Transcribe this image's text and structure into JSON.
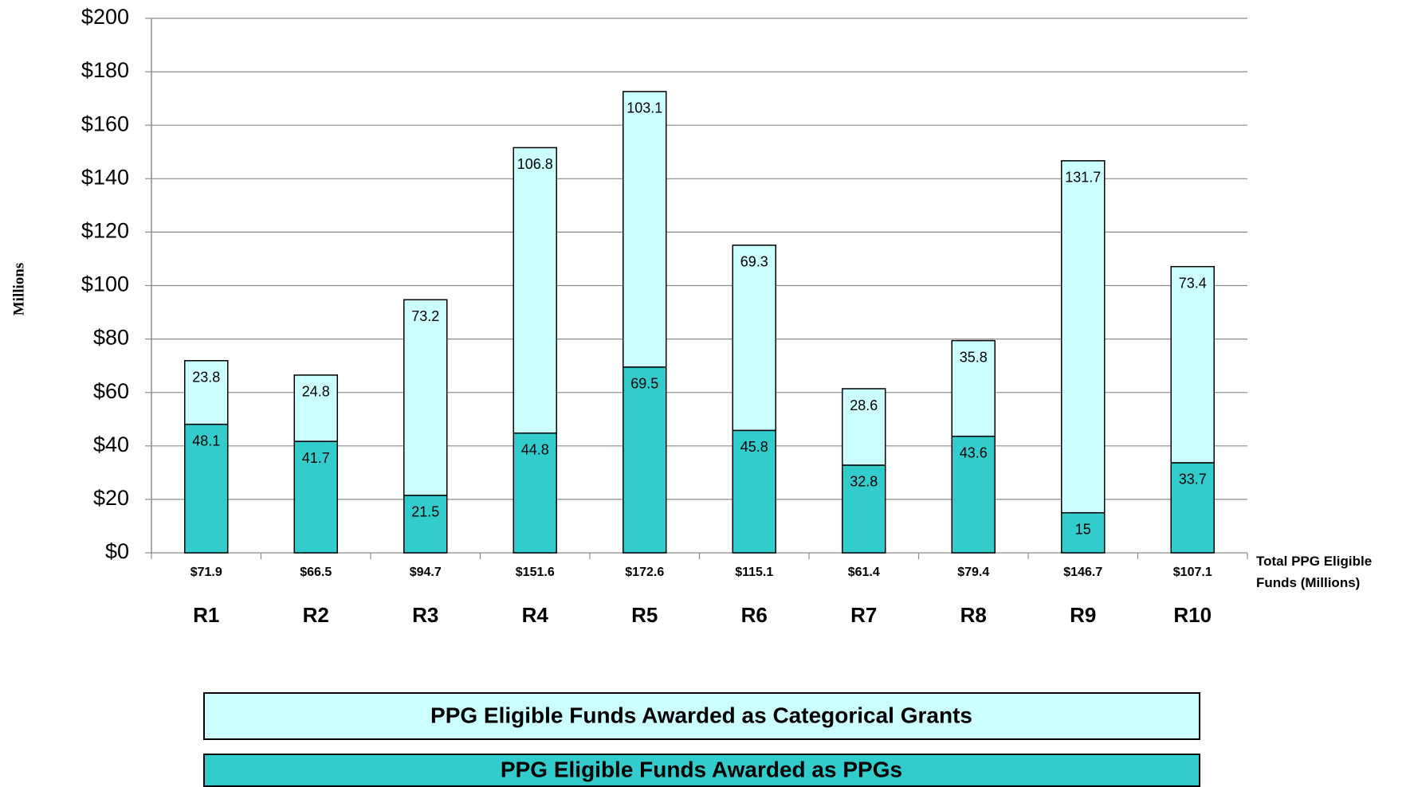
{
  "chart_data": {
    "type": "stacked_bar",
    "y_label": "Millions",
    "categories": [
      "R1",
      "R2",
      "R3",
      "R4",
      "R5",
      "R6",
      "R7",
      "R8",
      "R9",
      "R10"
    ],
    "series": [
      {
        "name": "PPG Eligible Funds Awarded as PPGs",
        "color": "#33cccc",
        "values": [
          48.1,
          41.7,
          21.5,
          44.8,
          69.5,
          45.8,
          32.8,
          43.6,
          15,
          33.7
        ]
      },
      {
        "name": "PPG Eligible Funds Awarded as Categorical Grants",
        "color": "#ccffff",
        "values": [
          23.8,
          24.8,
          73.2,
          106.8,
          103.1,
          69.3,
          28.6,
          35.8,
          131.7,
          73.4
        ]
      }
    ],
    "totals_label": "Total PPG Eligible Funds (Millions)",
    "totals": [
      "$71.9",
      "$66.5",
      "$94.7",
      "$151.6",
      "$172.6",
      "$115.1",
      "$61.4",
      "$79.4",
      "$146.7",
      "$107.1"
    ],
    "ylim": [
      0,
      200
    ],
    "yticks": [
      {
        "value": 0,
        "label": "$0"
      },
      {
        "value": 20,
        "label": "$20"
      },
      {
        "value": 40,
        "label": "$40"
      },
      {
        "value": 60,
        "label": "$60"
      },
      {
        "value": 80,
        "label": "$80"
      },
      {
        "value": 100,
        "label": "$100"
      },
      {
        "value": 120,
        "label": "$120"
      },
      {
        "value": 140,
        "label": "$140"
      },
      {
        "value": 160,
        "label": "$160"
      },
      {
        "value": 180,
        "label": "$180"
      },
      {
        "value": 200,
        "label": "$200"
      }
    ],
    "grid": true
  }
}
